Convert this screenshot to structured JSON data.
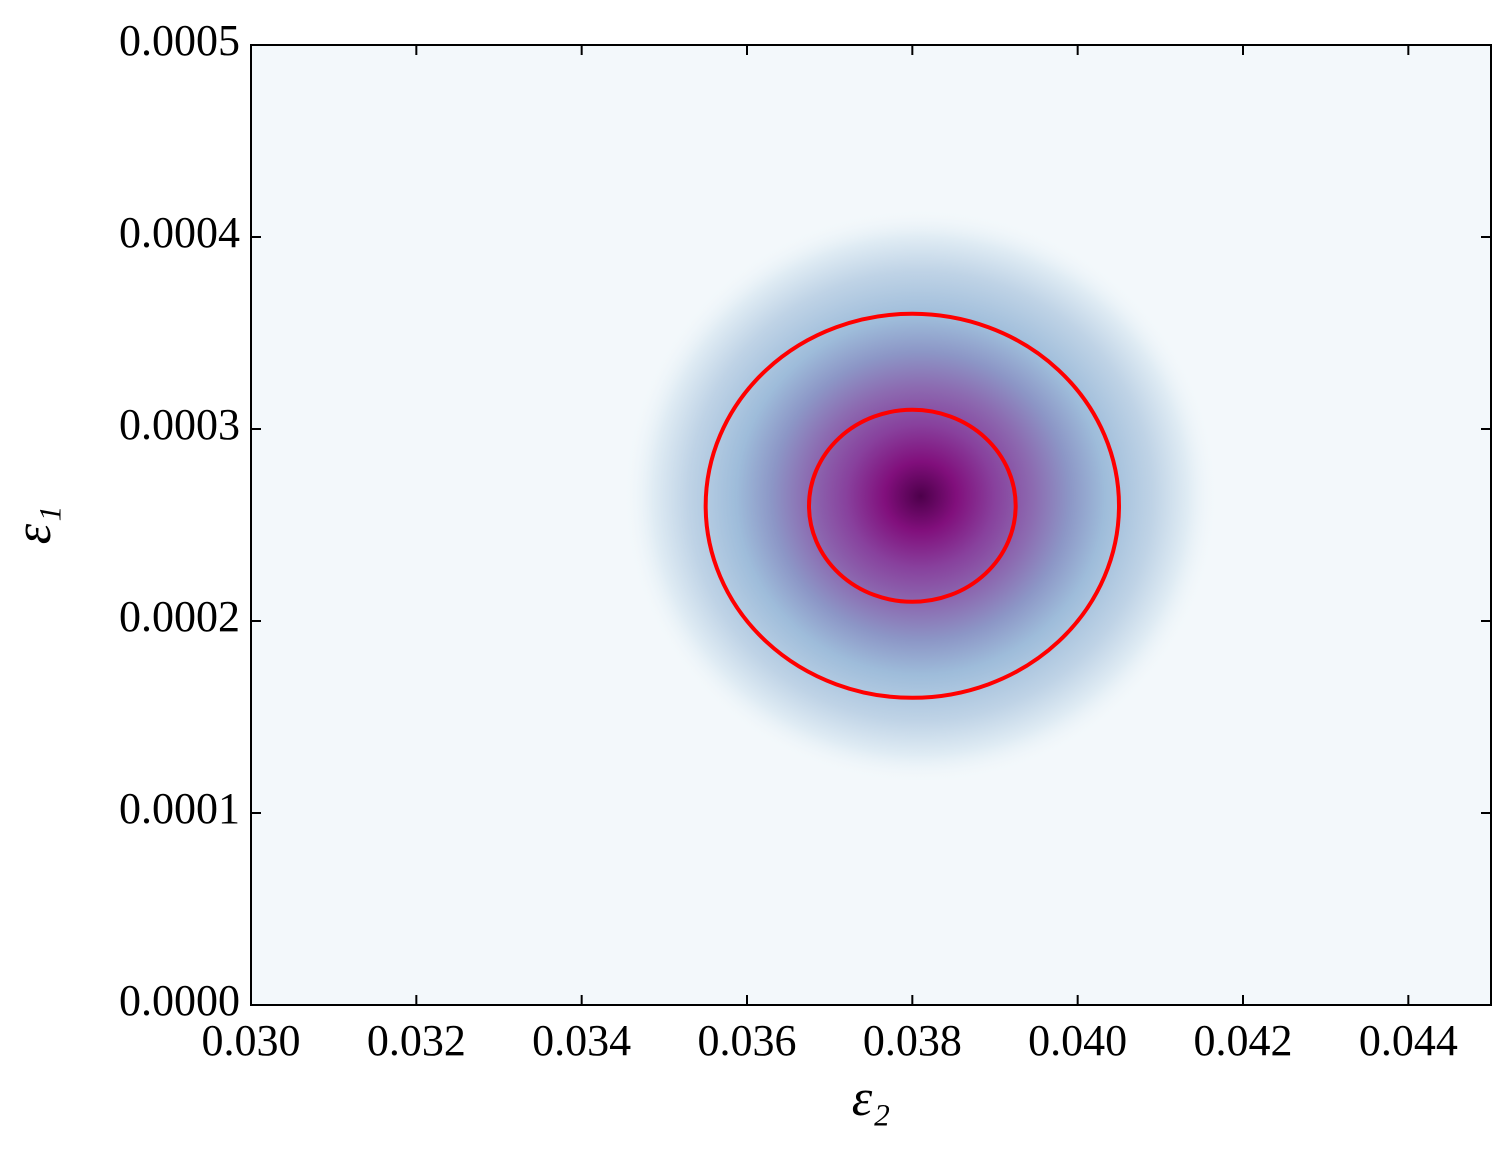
{
  "chart_data": {
    "type": "density",
    "x_label": "ε₂",
    "y_label": "ε₁",
    "xlim": [
      0.03,
      0.045
    ],
    "ylim": [
      0.0,
      0.0005
    ],
    "xticks": [
      {
        "value": 0.03,
        "label": "0.030"
      },
      {
        "value": 0.032,
        "label": "0.032"
      },
      {
        "value": 0.034,
        "label": "0.034"
      },
      {
        "value": 0.036,
        "label": "0.036"
      },
      {
        "value": 0.038,
        "label": "0.038"
      },
      {
        "value": 0.04,
        "label": "0.040"
      },
      {
        "value": 0.042,
        "label": "0.042"
      },
      {
        "value": 0.044,
        "label": "0.044"
      }
    ],
    "yticks": [
      {
        "value": 0.0,
        "label": "0.0000"
      },
      {
        "value": 0.0001,
        "label": "0.0001"
      },
      {
        "value": 0.0002,
        "label": "0.0002"
      },
      {
        "value": 0.0003,
        "label": "0.0003"
      },
      {
        "value": 0.0004,
        "label": "0.0004"
      },
      {
        "value": 0.0005,
        "label": "0.0005"
      }
    ],
    "density": {
      "center": [
        0.0381,
        0.000265
      ],
      "sigma": [
        0.0012,
        5e-05
      ]
    },
    "contours": [
      {
        "center": [
          0.038,
          0.00026
        ],
        "radii": [
          0.0025,
          0.0001
        ],
        "color": "#ff0000"
      },
      {
        "center": [
          0.038,
          0.00026
        ],
        "radii": [
          0.00125,
          5e-05
        ],
        "color": "#ff0000"
      }
    ]
  }
}
